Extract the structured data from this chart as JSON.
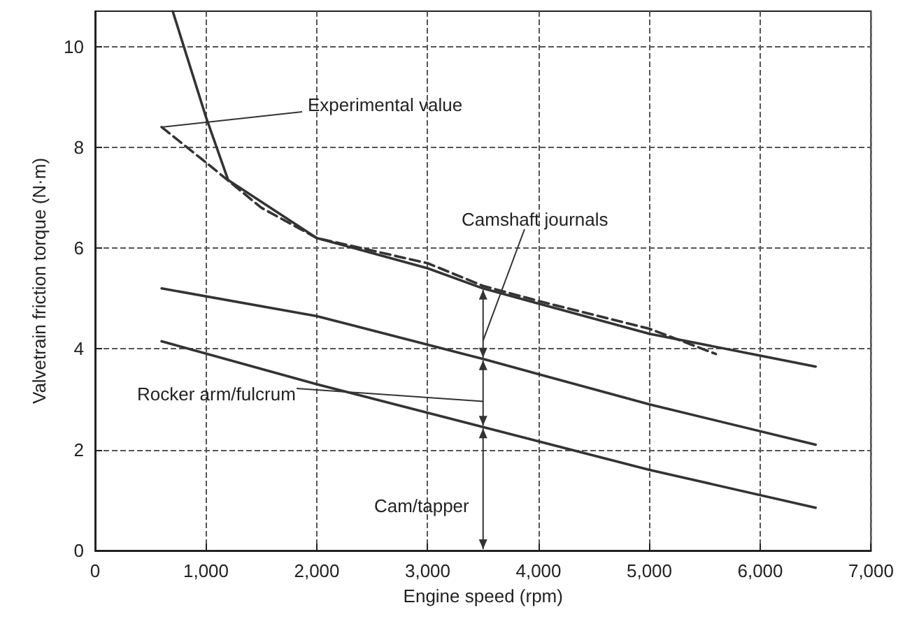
{
  "chart_data": {
    "type": "line",
    "xlabel": "Engine speed (rpm)",
    "ylabel": "Valvetrain friction torque (N·m)",
    "xlim": [
      0,
      7000
    ],
    "xticks": [
      {
        "value": 0,
        "label": "0"
      },
      {
        "value": 1000,
        "label": "1,000"
      },
      {
        "value": 2000,
        "label": "2,000"
      },
      {
        "value": 3000,
        "label": "3,000"
      },
      {
        "value": 4000,
        "label": "4,000"
      },
      {
        "value": 5000,
        "label": "5,000"
      },
      {
        "value": 6000,
        "label": "6,000"
      },
      {
        "value": 7000,
        "label": "7,000"
      }
    ],
    "ylim": [
      0,
      10.7
    ],
    "yticks": [
      0,
      2,
      4,
      6,
      8,
      10
    ],
    "grid": true,
    "marker": "none",
    "series": [
      {
        "color": "#333333",
        "line_style": "solid",
        "x": [
          700,
          1000,
          1200,
          2000,
          3000,
          3500,
          4000,
          5000,
          6500
        ],
        "values": [
          10.7,
          8.6,
          7.35,
          6.2,
          5.6,
          5.2,
          4.9,
          4.3,
          3.65
        ]
      },
      {
        "color": "#333333",
        "line_style": "dashed",
        "x": [
          600,
          1000,
          1500,
          2000,
          3000,
          3500,
          4000,
          5000,
          5600
        ],
        "values": [
          8.4,
          7.7,
          6.8,
          6.2,
          5.7,
          5.25,
          4.95,
          4.4,
          3.9
        ]
      },
      {
        "color": "#333333",
        "line_style": "solid",
        "x": [
          600,
          2000,
          3500,
          5000,
          6500
        ],
        "values": [
          5.2,
          4.65,
          3.8,
          2.9,
          2.1
        ]
      },
      {
        "color": "#333333",
        "line_style": "solid",
        "x": [
          600,
          2000,
          3500,
          5000,
          6500
        ],
        "values": [
          4.15,
          3.3,
          2.45,
          1.6,
          0.85
        ]
      }
    ],
    "annotations": [
      {
        "text": "Experimental value",
        "x": 600,
        "y": 8.4
      },
      "Camshaft journals",
      "Rocker arm/fulcrum",
      "Cam/tapper"
    ]
  }
}
